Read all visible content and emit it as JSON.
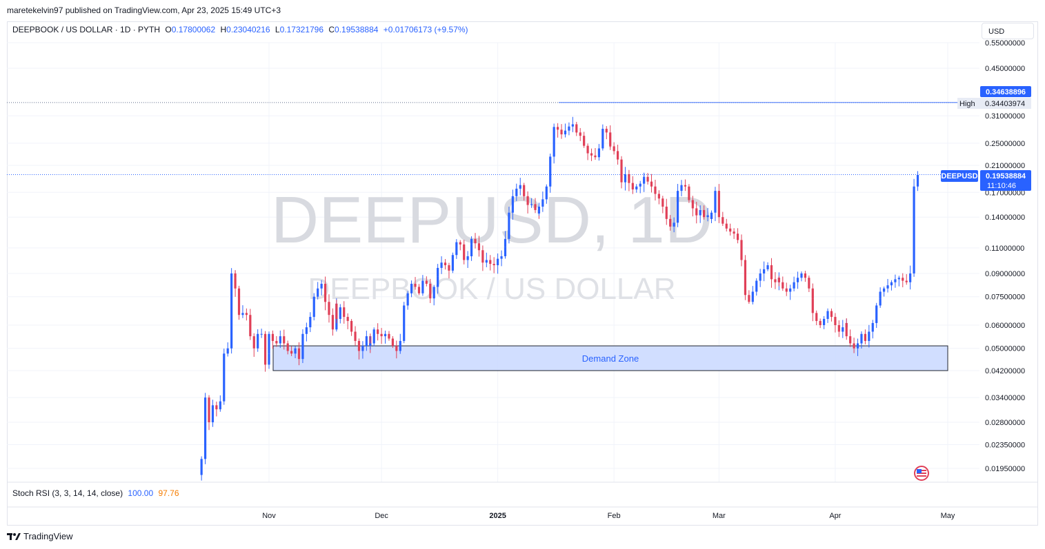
{
  "header": {
    "published_by": "maretekelvin97 published on TradingView.com, Apr 23, 2025 15:49 UTC+3"
  },
  "symbol_bar": {
    "name": "DEEPBOOK / US DOLLAR · 1D · PYTH",
    "open_label": "O",
    "open": "0.17800062",
    "high_label": "H",
    "high": "0.23040216",
    "low_label": "L",
    "low": "0.17321796",
    "close_label": "C",
    "close": "0.19538884",
    "change": "+0.01706173 (+9.57%)"
  },
  "currency_button": "USD",
  "watermark": {
    "title": "DEEPUSD, 1D",
    "subtitle": "DEEPBOOK / US DOLLAR"
  },
  "indicator": {
    "name": "Stoch RSI (3, 3, 14, 14, close)",
    "k": "100.00",
    "d": "97.76"
  },
  "footer": {
    "brand": "TradingView"
  },
  "colors": {
    "up": "#2962ff",
    "down": "#e03f57",
    "demand_fill": "#c9d8ff",
    "label_blue": "#2962ff",
    "grid": "#f0f3fa"
  },
  "chart_data": {
    "type": "candlestick",
    "symbol": "DEEPUSD",
    "scale": "log",
    "x_ticks": [
      "Nov",
      "Dec",
      "2025",
      "Feb",
      "Mar",
      "Apr",
      "May"
    ],
    "y_ticks": [
      "0.55000000",
      "0.45000000",
      "0.31000000",
      "0.25000000",
      "0.21000000",
      "0.17000000",
      "0.14000000",
      "0.11000000",
      "0.09000000",
      "0.07500000",
      "0.06000000",
      "0.05000000",
      "0.04200000",
      "0.03400000",
      "0.02800000",
      "0.02350000",
      "0.01950000"
    ],
    "y_tick_values": [
      0.55,
      0.45,
      0.31,
      0.25,
      0.21,
      0.17,
      0.14,
      0.11,
      0.09,
      0.075,
      0.06,
      0.05,
      0.042,
      0.034,
      0.028,
      0.0235,
      0.0195
    ],
    "x_tick_dates": [
      "2024-11-01",
      "2024-12-01",
      "2025-01-01",
      "2025-02-01",
      "2025-03-01",
      "2025-04-01",
      "2025-05-01"
    ],
    "first_date": "2024-10-14",
    "last_date": "2025-04-23",
    "closes": [
      0.0195,
      0.021,
      0.034,
      0.028,
      0.032,
      0.031,
      0.033,
      0.048,
      0.05,
      0.09,
      0.087,
      0.08,
      0.065,
      0.066,
      0.065,
      0.055,
      0.05,
      0.056,
      0.056,
      0.044,
      0.048,
      0.056,
      0.053,
      0.052,
      0.055,
      0.052,
      0.049,
      0.048,
      0.05,
      0.046,
      0.049,
      0.056,
      0.059,
      0.064,
      0.075,
      0.08,
      0.083,
      0.072,
      0.065,
      0.058,
      0.071,
      0.063,
      0.069,
      0.064,
      0.062,
      0.057,
      0.053,
      0.049,
      0.051,
      0.055,
      0.051,
      0.052,
      0.058,
      0.056,
      0.055,
      0.056,
      0.054,
      0.051,
      0.049,
      0.053,
      0.063,
      0.07,
      0.077,
      0.083,
      0.081,
      0.077,
      0.085,
      0.083,
      0.074,
      0.081,
      0.088,
      0.094,
      0.098,
      0.096,
      0.092,
      0.104,
      0.115,
      0.113,
      0.1,
      0.103,
      0.113,
      0.118,
      0.114,
      0.108,
      0.098,
      0.1,
      0.097,
      0.096,
      0.101,
      0.103,
      0.111,
      0.118,
      0.145,
      0.165,
      0.175,
      0.18,
      0.165,
      0.154,
      0.155,
      0.148,
      0.144,
      0.152,
      0.161,
      0.178,
      0.225,
      0.284,
      0.278,
      0.268,
      0.276,
      0.285,
      0.29,
      0.277,
      0.272,
      0.265,
      0.245,
      0.231,
      0.227,
      0.224,
      0.24,
      0.28,
      0.272,
      0.245,
      0.244,
      0.235,
      0.22,
      0.184,
      0.196,
      0.183,
      0.174,
      0.178,
      0.182,
      0.19,
      0.192,
      0.185,
      0.178,
      0.168,
      0.162,
      0.152,
      0.138,
      0.13,
      0.134,
      0.16,
      0.172,
      0.18,
      0.178,
      0.16,
      0.15,
      0.142,
      0.148,
      0.14,
      0.142,
      0.138,
      0.145,
      0.172,
      0.14,
      0.133,
      0.128,
      0.125,
      0.123,
      0.117,
      0.1,
      0.085,
      0.076,
      0.072,
      0.078,
      0.085,
      0.09,
      0.093,
      0.096,
      0.086,
      0.084,
      0.087,
      0.084,
      0.08,
      0.078,
      0.08,
      0.084,
      0.087,
      0.09,
      0.087,
      0.08,
      0.074,
      0.066,
      0.062,
      0.06,
      0.063,
      0.067,
      0.064,
      0.06,
      0.057,
      0.059,
      0.061,
      0.055,
      0.052,
      0.05,
      0.052,
      0.056,
      0.053,
      0.057,
      0.061,
      0.07,
      0.074,
      0.078,
      0.08,
      0.082,
      0.084,
      0.086,
      0.087,
      0.085,
      0.084,
      0.09,
      0.178,
      0.195
    ],
    "highs_shown": {
      "period_high": "0.34638896",
      "line_high": "0.34403974"
    },
    "last_price": "0.19538884",
    "countdown": "11:10:46",
    "annotation": {
      "label": "Demand Zone",
      "upper": 0.051,
      "lower": 0.042,
      "from": "2024-11-01",
      "to": "2025-05-01"
    },
    "high_label": "High",
    "price_tag": "DEEPUSD"
  }
}
